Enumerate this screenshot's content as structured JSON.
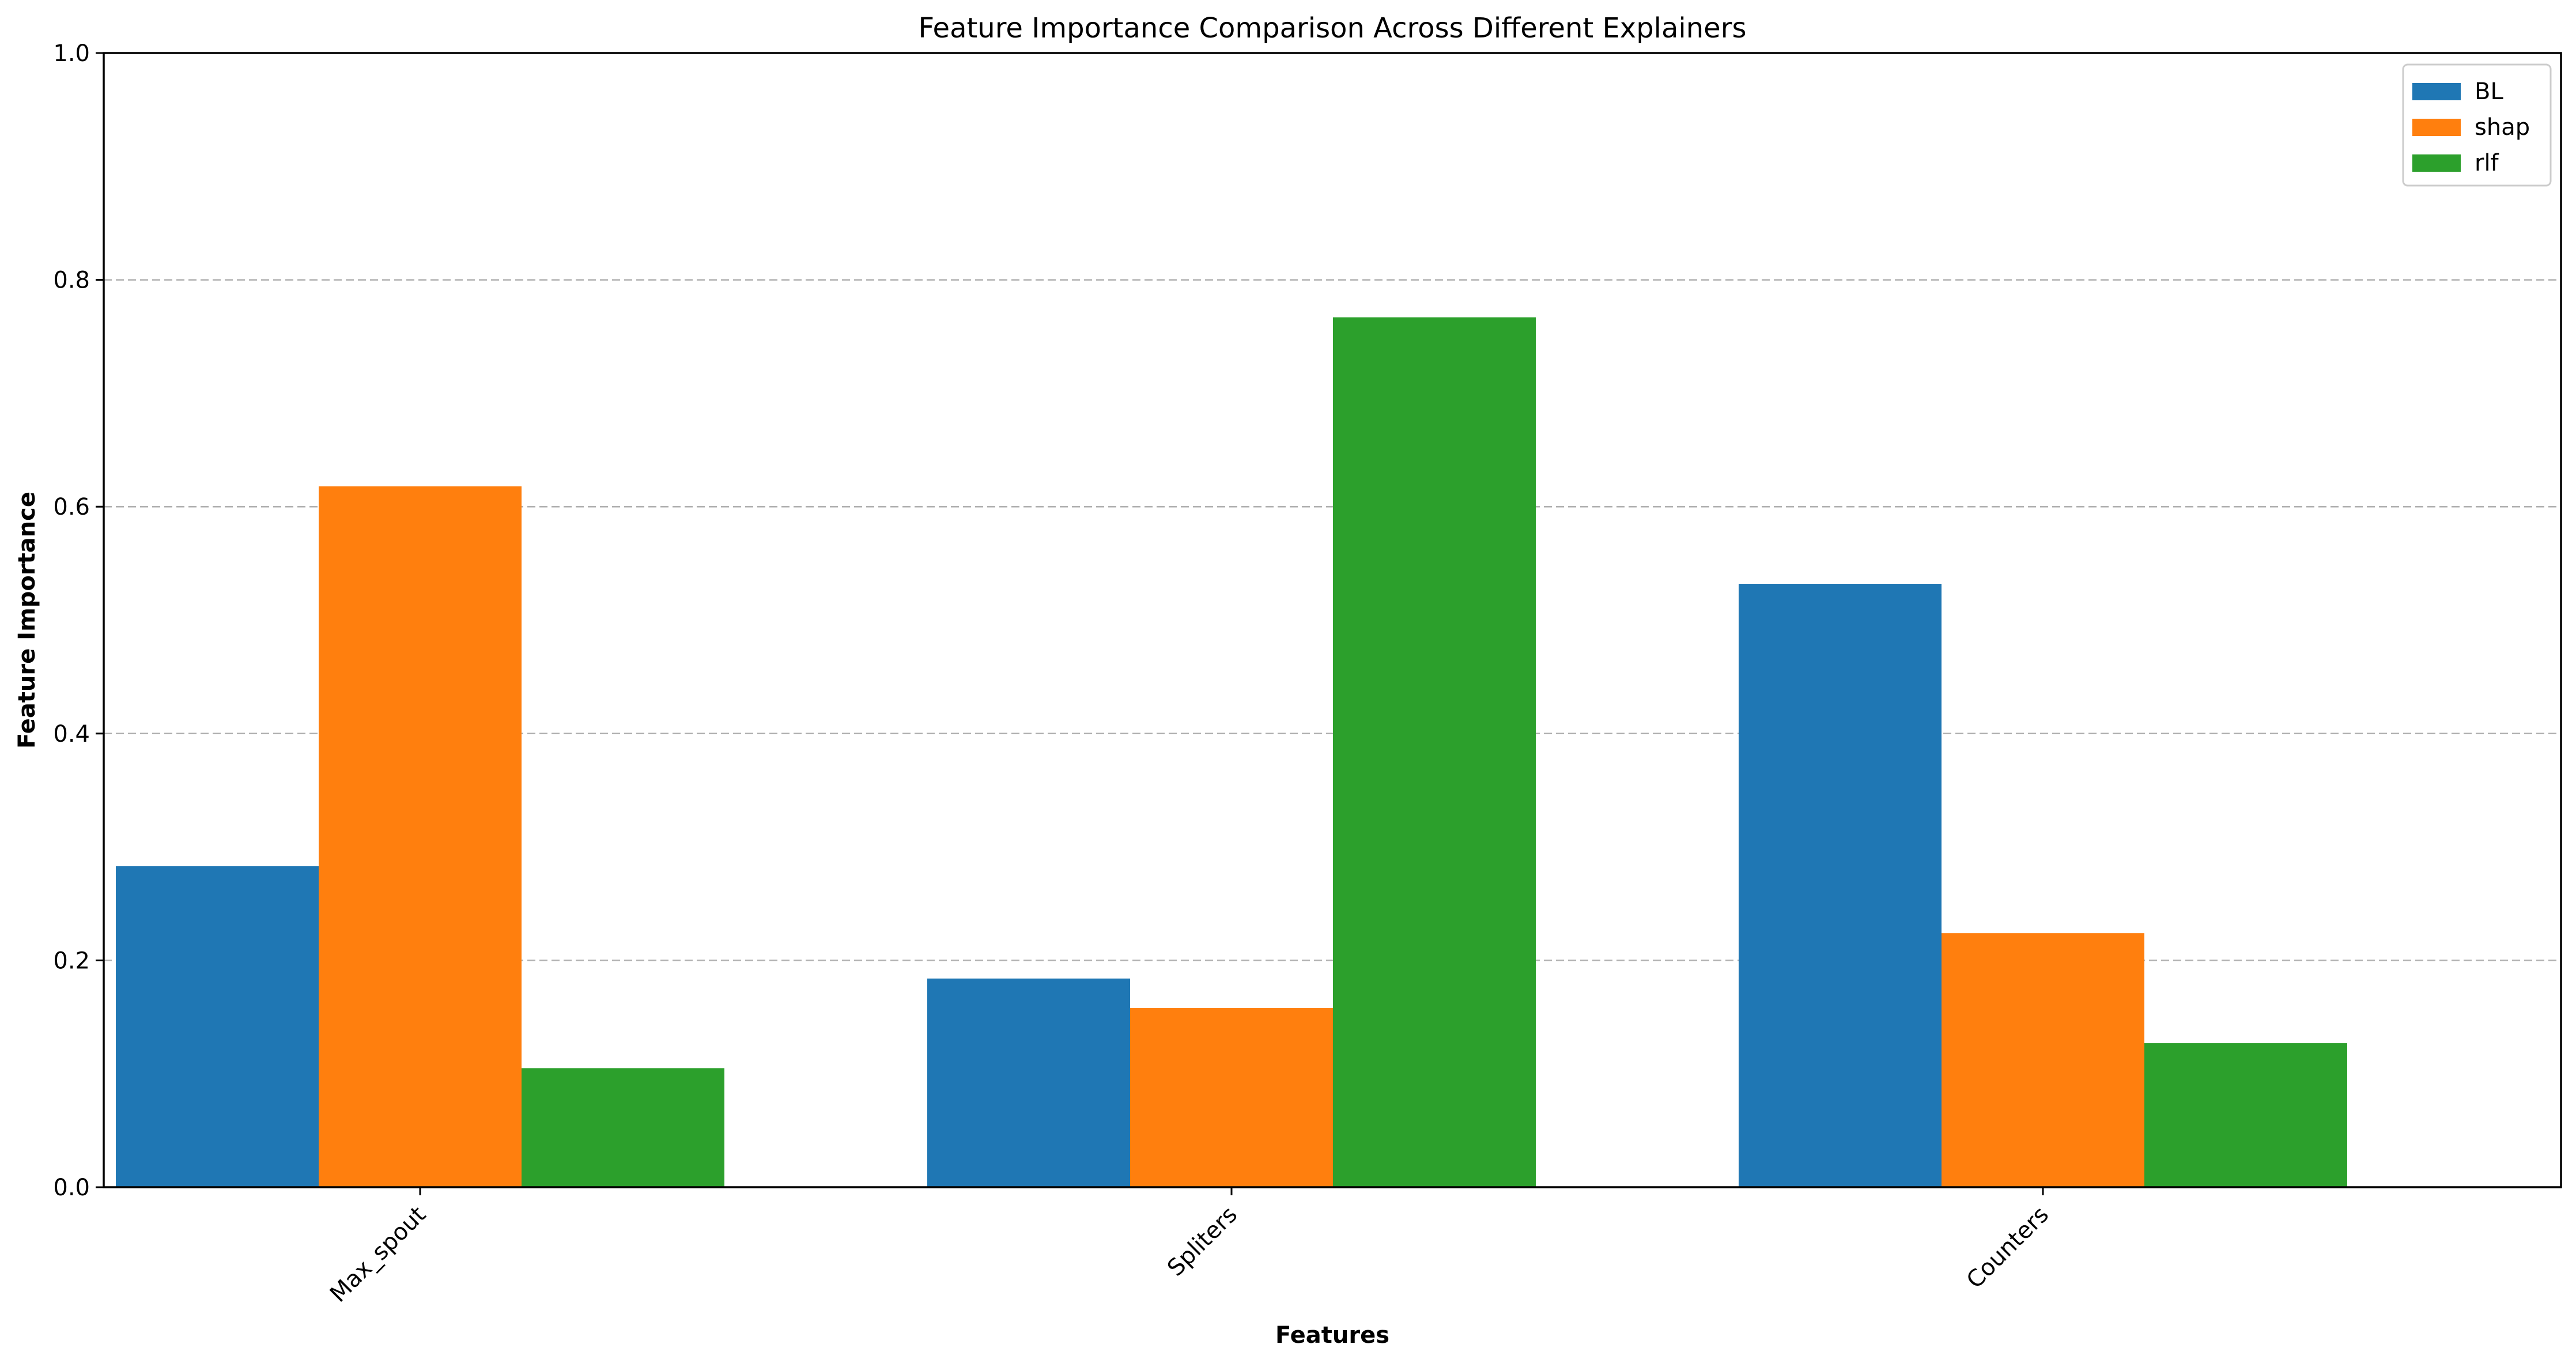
{
  "chart_data": {
    "type": "bar",
    "title": "Feature Importance Comparison Across Different Explainers",
    "xlabel": "Features",
    "ylabel": "Feature Importance",
    "categories": [
      "Max_spout",
      "Spliters",
      "Counters"
    ],
    "series": [
      {
        "name": "BL",
        "color": "#1f77b4",
        "values": [
          0.283,
          0.184,
          0.532
        ]
      },
      {
        "name": "shap",
        "color": "#ff7f0e",
        "values": [
          0.618,
          0.158,
          0.224
        ]
      },
      {
        "name": "rlf",
        "color": "#2ca02c",
        "values": [
          0.105,
          0.767,
          0.127
        ]
      }
    ],
    "ylim": [
      0,
      1.0
    ],
    "yticks": [
      "0.0",
      "0.2",
      "0.4",
      "0.6",
      "0.8",
      "1.0"
    ],
    "grid": "y-dashed",
    "legend_position": "top-right"
  }
}
